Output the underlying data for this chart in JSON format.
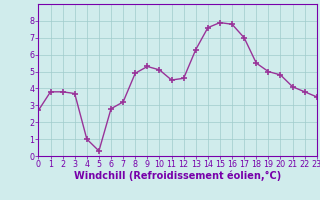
{
  "x": [
    0,
    1,
    2,
    3,
    4,
    5,
    6,
    7,
    8,
    9,
    10,
    11,
    12,
    13,
    14,
    15,
    16,
    17,
    18,
    19,
    20,
    21,
    22,
    23
  ],
  "y": [
    2.7,
    3.8,
    3.8,
    3.7,
    1.0,
    0.3,
    2.8,
    3.2,
    4.9,
    5.3,
    5.1,
    4.5,
    4.6,
    6.3,
    7.6,
    7.9,
    7.8,
    7.0,
    5.5,
    5.0,
    4.8,
    4.1,
    3.8,
    3.5
  ],
  "line_color": "#993399",
  "marker": "+",
  "marker_size": 4,
  "marker_linewidth": 1.2,
  "bg_color": "#d0ecec",
  "grid_color": "#a0cccc",
  "xlabel": "Windchill (Refroidissement éolien,°C)",
  "xlim": [
    0,
    23
  ],
  "ylim": [
    0,
    9
  ],
  "yticks": [
    0,
    1,
    2,
    3,
    4,
    5,
    6,
    7,
    8
  ],
  "xticks": [
    0,
    1,
    2,
    3,
    4,
    5,
    6,
    7,
    8,
    9,
    10,
    11,
    12,
    13,
    14,
    15,
    16,
    17,
    18,
    19,
    20,
    21,
    22,
    23
  ],
  "tick_label_fontsize": 5.8,
  "xlabel_fontsize": 7.0,
  "axis_color": "#7700aa",
  "spine_color": "#7700aa",
  "linewidth": 1.0
}
